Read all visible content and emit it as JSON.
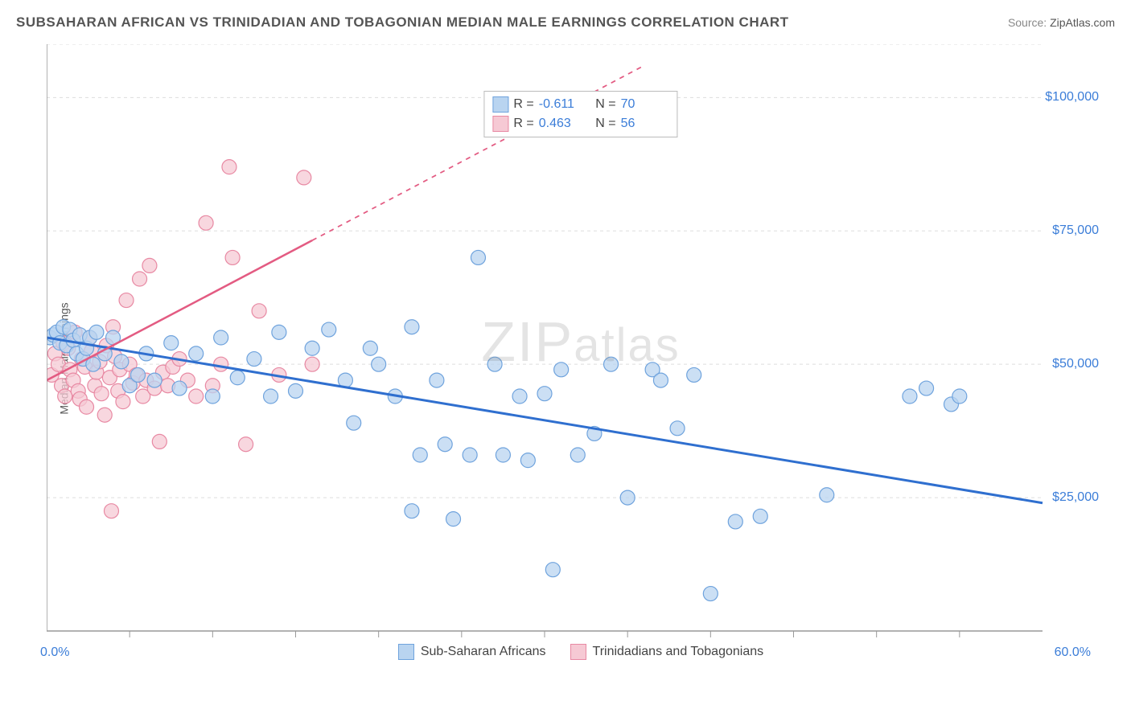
{
  "header": {
    "title": "SUBSAHARAN AFRICAN VS TRINIDADIAN AND TOBAGONIAN MEDIAN MALE EARNINGS CORRELATION CHART",
    "source_label": "Source:",
    "source_value": "ZipAtlas.com"
  },
  "axes": {
    "ylabel": "Median Male Earnings",
    "x_min": 0.0,
    "x_max": 60.0,
    "x_min_label": "0.0%",
    "x_max_label": "60.0%",
    "y_min": 0,
    "y_max": 110000,
    "y_ticks": [
      25000,
      50000,
      75000,
      100000
    ],
    "y_tick_labels": [
      "$25,000",
      "$50,000",
      "$75,000",
      "$100,000"
    ],
    "x_minor_ticks": [
      5,
      10,
      15,
      20,
      25,
      30,
      35,
      40,
      45,
      50,
      55
    ],
    "grid_color": "#dddddd",
    "axis_color": "#999999",
    "tick_label_color": "#3b7dd8"
  },
  "watermark": {
    "part1": "ZIP",
    "part2": "atlas"
  },
  "series": [
    {
      "name": "Sub-Saharan Africans",
      "color_fill": "#b9d4f0",
      "color_stroke": "#6fa3dd",
      "marker_radius": 9,
      "marker_opacity": 0.75,
      "r_value": "-0.611",
      "n_value": "70",
      "regression": {
        "x1": 0,
        "y1": 55000,
        "x2": 60,
        "y2": 24000,
        "solid_until_x": 60,
        "color": "#2f6fcf",
        "width": 3
      },
      "points": [
        [
          0.2,
          55000
        ],
        [
          0.4,
          55500
        ],
        [
          0.6,
          56000
        ],
        [
          0.8,
          54000
        ],
        [
          1.0,
          57000
        ],
        [
          1.2,
          53500
        ],
        [
          1.4,
          56500
        ],
        [
          1.6,
          54500
        ],
        [
          1.8,
          52000
        ],
        [
          2.0,
          55500
        ],
        [
          2.2,
          51000
        ],
        [
          2.4,
          53000
        ],
        [
          2.6,
          55000
        ],
        [
          2.8,
          50000
        ],
        [
          3.0,
          56000
        ],
        [
          3.5,
          52000
        ],
        [
          4.0,
          55000
        ],
        [
          4.5,
          50500
        ],
        [
          5.0,
          46000
        ],
        [
          5.5,
          48000
        ],
        [
          6.0,
          52000
        ],
        [
          6.5,
          47000
        ],
        [
          7.5,
          54000
        ],
        [
          8.0,
          45500
        ],
        [
          9.0,
          52000
        ],
        [
          10.0,
          44000
        ],
        [
          10.5,
          55000
        ],
        [
          11.5,
          47500
        ],
        [
          12.5,
          51000
        ],
        [
          13.5,
          44000
        ],
        [
          14.0,
          56000
        ],
        [
          15.0,
          45000
        ],
        [
          16.0,
          53000
        ],
        [
          17.0,
          56500
        ],
        [
          18.0,
          47000
        ],
        [
          18.5,
          39000
        ],
        [
          19.5,
          53000
        ],
        [
          20.0,
          50000
        ],
        [
          21.0,
          44000
        ],
        [
          22.0,
          22500
        ],
        [
          22.5,
          33000
        ],
        [
          23.5,
          47000
        ],
        [
          24.0,
          35000
        ],
        [
          24.5,
          21000
        ],
        [
          25.5,
          33000
        ],
        [
          26.0,
          70000
        ],
        [
          27.0,
          50000
        ],
        [
          27.5,
          33000
        ],
        [
          28.5,
          44000
        ],
        [
          29.0,
          32000
        ],
        [
          30.0,
          44500
        ],
        [
          30.5,
          11500
        ],
        [
          31.0,
          49000
        ],
        [
          32.0,
          33000
        ],
        [
          33.0,
          37000
        ],
        [
          34.0,
          50000
        ],
        [
          35.0,
          25000
        ],
        [
          36.5,
          49000
        ],
        [
          37.0,
          47000
        ],
        [
          38.0,
          38000
        ],
        [
          39.0,
          48000
        ],
        [
          40.0,
          7000
        ],
        [
          41.5,
          20500
        ],
        [
          43.0,
          21500
        ],
        [
          47.0,
          25500
        ],
        [
          52.0,
          44000
        ],
        [
          53.0,
          45500
        ],
        [
          54.5,
          42500
        ],
        [
          55.0,
          44000
        ],
        [
          22.0,
          57000
        ]
      ]
    },
    {
      "name": "Trinidadians and Tobagonians",
      "color_fill": "#f6c9d4",
      "color_stroke": "#e889a3",
      "marker_radius": 9,
      "marker_opacity": 0.75,
      "r_value": "0.463",
      "n_value": "56",
      "regression": {
        "x1": 0,
        "y1": 47000,
        "x2": 36,
        "y2": 106000,
        "solid_until_x": 16,
        "color": "#e35b82",
        "width": 2.5
      },
      "points": [
        [
          0.3,
          48000
        ],
        [
          0.5,
          52000
        ],
        [
          0.7,
          50000
        ],
        [
          0.9,
          46000
        ],
        [
          1.0,
          54000
        ],
        [
          1.1,
          44000
        ],
        [
          1.3,
          53000
        ],
        [
          1.4,
          49000
        ],
        [
          1.6,
          47000
        ],
        [
          1.7,
          56000
        ],
        [
          1.9,
          45000
        ],
        [
          2.0,
          43500
        ],
        [
          2.1,
          51000
        ],
        [
          2.3,
          49500
        ],
        [
          2.4,
          42000
        ],
        [
          2.6,
          55000
        ],
        [
          2.7,
          52500
        ],
        [
          2.9,
          46000
        ],
        [
          3.0,
          48500
        ],
        [
          3.2,
          50500
        ],
        [
          3.3,
          44500
        ],
        [
          3.5,
          40500
        ],
        [
          3.6,
          53500
        ],
        [
          3.8,
          47500
        ],
        [
          3.9,
          22500
        ],
        [
          4.0,
          57000
        ],
        [
          4.1,
          51500
        ],
        [
          4.3,
          45000
        ],
        [
          4.4,
          49000
        ],
        [
          4.6,
          43000
        ],
        [
          4.8,
          62000
        ],
        [
          5.0,
          50000
        ],
        [
          5.2,
          46500
        ],
        [
          5.4,
          48000
        ],
        [
          5.6,
          66000
        ],
        [
          5.8,
          44000
        ],
        [
          6.0,
          47000
        ],
        [
          6.2,
          68500
        ],
        [
          6.5,
          45500
        ],
        [
          6.8,
          35500
        ],
        [
          7.0,
          48500
        ],
        [
          7.3,
          46000
        ],
        [
          7.6,
          49500
        ],
        [
          8.0,
          51000
        ],
        [
          8.5,
          47000
        ],
        [
          9.0,
          44000
        ],
        [
          9.6,
          76500
        ],
        [
          10.0,
          46000
        ],
        [
          10.5,
          50000
        ],
        [
          11.0,
          87000
        ],
        [
          11.2,
          70000
        ],
        [
          12.0,
          35000
        ],
        [
          12.8,
          60000
        ],
        [
          14.0,
          48000
        ],
        [
          15.5,
          85000
        ],
        [
          16.0,
          50000
        ]
      ]
    }
  ],
  "legend_bottom": [
    {
      "label": "Sub-Saharan Africans",
      "fill": "#b9d4f0",
      "stroke": "#6fa3dd"
    },
    {
      "label": "Trinidadians and Tobagonians",
      "fill": "#f6c9d4",
      "stroke": "#e889a3"
    }
  ],
  "layout": {
    "background_color": "#ffffff",
    "font_family": "Arial, Helvetica, sans-serif",
    "title_fontsize": 17,
    "label_fontsize": 14,
    "tick_fontsize": 16,
    "legend_fontsize": 16
  }
}
